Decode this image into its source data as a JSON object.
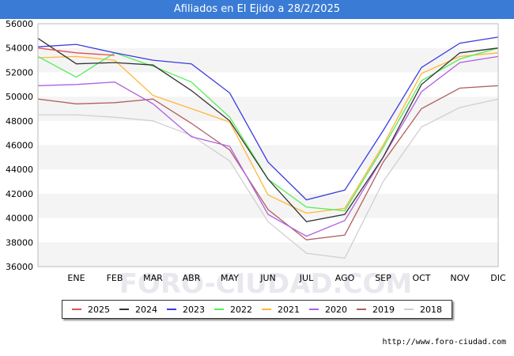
{
  "header": {
    "title": "Afiliados en El Ejido a 28/2/2025"
  },
  "footer": {
    "source": "http://www.foro-ciudad.com"
  },
  "watermark": "FORO-CIUDAD.COM",
  "chart_data": {
    "type": "line",
    "title": "Afiliados en El Ejido a 28/2/2025",
    "xlabel": "",
    "ylabel": "",
    "categories": [
      "",
      "ENE",
      "FEB",
      "MAR",
      "ABR",
      "MAY",
      "JUN",
      "JUL",
      "AGO",
      "SEP",
      "OCT",
      "NOV",
      "DIC"
    ],
    "y_ticks": [
      36000,
      38000,
      40000,
      42000,
      44000,
      46000,
      48000,
      50000,
      52000,
      54000,
      56000
    ],
    "ylim": [
      36000,
      56000
    ],
    "grid": "horizontal bands",
    "legend_position": "bottom",
    "series": [
      {
        "name": "2025",
        "color": "#e05050",
        "values": [
          54000,
          53600,
          53400,
          null,
          null,
          null,
          null,
          null,
          null,
          null,
          null,
          null,
          null
        ]
      },
      {
        "name": "2024",
        "color": "#333333",
        "values": [
          54800,
          52700,
          52800,
          52600,
          50500,
          48000,
          43200,
          39700,
          40300,
          45000,
          51000,
          53600,
          54000
        ]
      },
      {
        "name": "2023",
        "color": "#3b3bdf",
        "values": [
          54100,
          54300,
          53600,
          53000,
          52700,
          50300,
          44600,
          41500,
          42300,
          47200,
          52400,
          54400,
          54900
        ]
      },
      {
        "name": "2022",
        "color": "#55ee55",
        "values": [
          53300,
          51600,
          53600,
          52500,
          51200,
          48300,
          43200,
          40900,
          40600,
          45800,
          51300,
          53100,
          54000
        ]
      },
      {
        "name": "2021",
        "color": "#ffb733",
        "values": [
          53200,
          53300,
          53000,
          50100,
          49000,
          47900,
          41900,
          40400,
          40800,
          46000,
          51900,
          53300,
          53600
        ]
      },
      {
        "name": "2020",
        "color": "#b060e0",
        "values": [
          50900,
          51000,
          51200,
          49400,
          46700,
          45900,
          40300,
          38500,
          39800,
          45000,
          50400,
          52800,
          53300
        ]
      },
      {
        "name": "2019",
        "color": "#b06060",
        "values": [
          49800,
          49400,
          49500,
          49800,
          47800,
          45600,
          40700,
          38200,
          38600,
          44600,
          49000,
          50700,
          50900
        ]
      },
      {
        "name": "2018",
        "color": "#d0d0d0",
        "values": [
          48500,
          48500,
          48300,
          48000,
          46800,
          44700,
          39700,
          37100,
          36700,
          43000,
          47500,
          49100,
          49800
        ]
      }
    ]
  }
}
